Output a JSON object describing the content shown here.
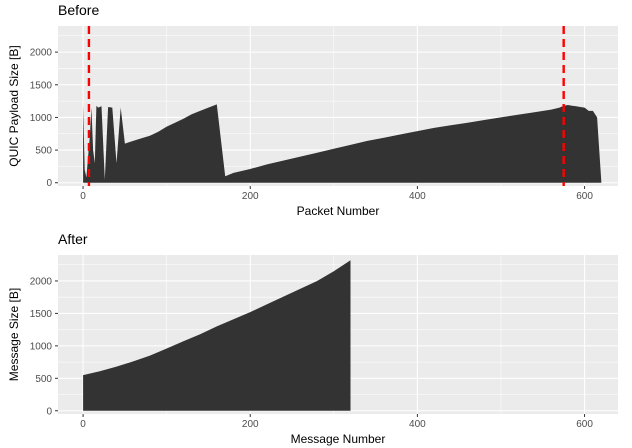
{
  "chart_data": [
    {
      "type": "area",
      "title": "Before",
      "xlabel": "Packet Number",
      "ylabel": "QUIC Payload Size [B]",
      "xlim": [
        -30,
        640
      ],
      "ylim": [
        -50,
        2400
      ],
      "xticks": [
        0,
        200,
        400,
        600
      ],
      "yticks": [
        0,
        500,
        1000,
        1500,
        2000
      ],
      "grid": true,
      "fill_color": "#333333",
      "vlines": [
        {
          "x": 7,
          "color": "#ff0000",
          "style": "dashed"
        },
        {
          "x": 575,
          "color": "#ff0000",
          "style": "dashed"
        }
      ],
      "series": [
        {
          "x": [
            0,
            2,
            4,
            6,
            8,
            10,
            12,
            14,
            16,
            18,
            22,
            26,
            30,
            35,
            40,
            45,
            50,
            60,
            70,
            80,
            90,
            100,
            110,
            120,
            130,
            140,
            150,
            160,
            170,
            180,
            200,
            220,
            240,
            260,
            280,
            300,
            320,
            340,
            360,
            380,
            400,
            420,
            440,
            460,
            480,
            500,
            520,
            540,
            560,
            570,
            575,
            580,
            585,
            590,
            595,
            600,
            605,
            610,
            615,
            620
          ],
          "y": [
            1200,
            200,
            80,
            400,
            700,
            1150,
            500,
            300,
            1180,
            1150,
            1170,
            50,
            1160,
            1150,
            300,
            1150,
            600,
            640,
            680,
            720,
            780,
            860,
            920,
            980,
            1050,
            1100,
            1150,
            1200,
            100,
            150,
            210,
            280,
            340,
            400,
            460,
            520,
            580,
            640,
            690,
            740,
            790,
            840,
            880,
            920,
            960,
            1000,
            1040,
            1080,
            1120,
            1150,
            1180,
            1190,
            1180,
            1170,
            1160,
            1150,
            1100,
            1100,
            1000,
            20
          ]
        }
      ]
    },
    {
      "type": "area",
      "title": "After",
      "xlabel": "Message Number",
      "ylabel": "Message Size [B]",
      "xlim": [
        -30,
        640
      ],
      "ylim": [
        -50,
        2400
      ],
      "xticks": [
        0,
        200,
        400,
        600
      ],
      "yticks": [
        0,
        500,
        1000,
        1500,
        2000
      ],
      "grid": true,
      "fill_color": "#333333",
      "series": [
        {
          "x": [
            0,
            20,
            40,
            60,
            80,
            100,
            120,
            140,
            160,
            180,
            200,
            220,
            240,
            260,
            280,
            300,
            320
          ],
          "y": [
            550,
            610,
            680,
            760,
            850,
            960,
            1070,
            1180,
            1300,
            1410,
            1520,
            1640,
            1760,
            1880,
            2000,
            2150,
            2320
          ]
        }
      ]
    }
  ]
}
